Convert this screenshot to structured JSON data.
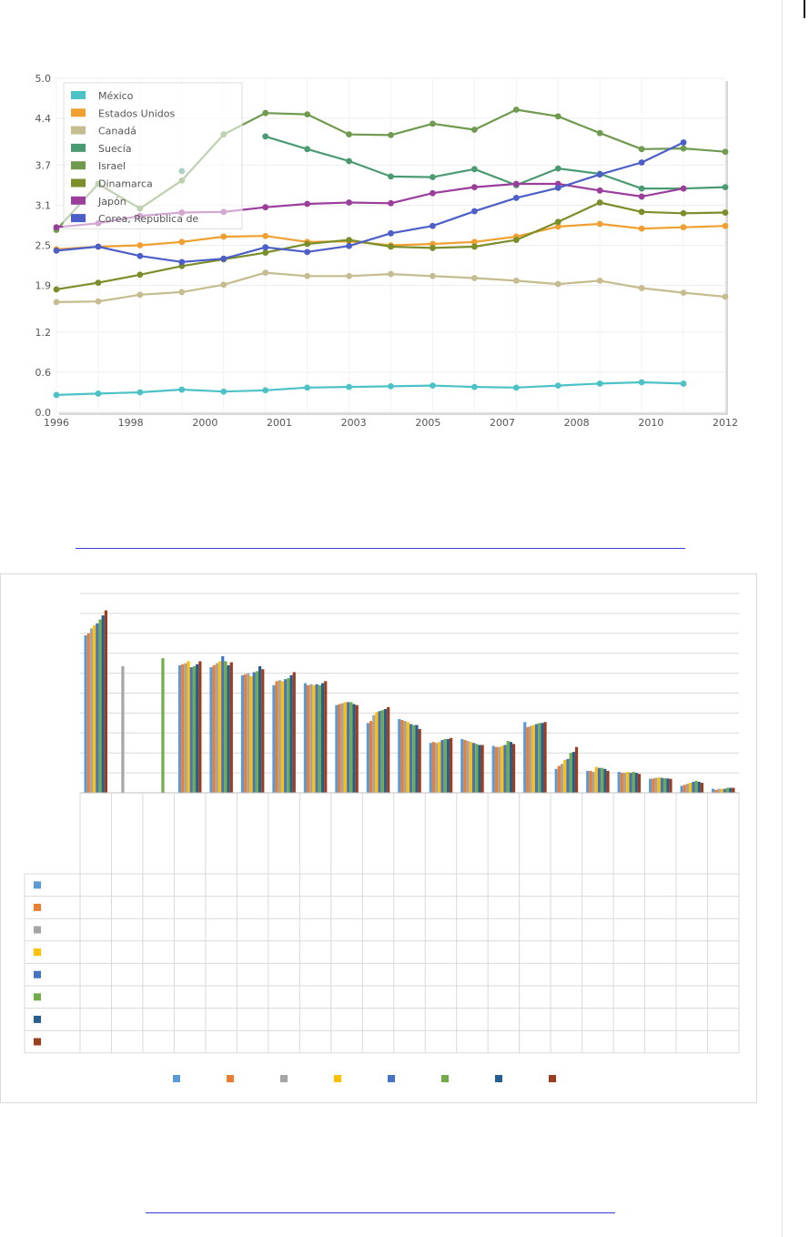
{
  "chart_data": [
    {
      "type": "line",
      "title": "",
      "xlabel": "",
      "ylabel": "",
      "x_tick_labels": [
        "1996",
        "1998",
        "2000",
        "2001",
        "2003",
        "2005",
        "2007",
        "2008",
        "2010",
        "2012"
      ],
      "y_tick_labels": [
        "0.0",
        "0.6",
        "1.2",
        "1.9",
        "2.5",
        "3.1",
        "3.7",
        "4.4",
        "5.0"
      ],
      "ylim": [
        0,
        5.0
      ],
      "grid": true,
      "legend_position": "top-left",
      "x": [
        1996,
        1997,
        1998,
        1999,
        2000,
        2001,
        2002,
        2003,
        2004,
        2005,
        2006,
        2007,
        2008,
        2009,
        2010,
        2011,
        2012
      ],
      "series": [
        {
          "name": "México",
          "color": "#4dc2c6",
          "values": [
            0.26,
            0.28,
            0.3,
            0.34,
            0.31,
            0.33,
            0.37,
            0.38,
            0.39,
            0.4,
            0.38,
            0.37,
            0.4,
            0.43,
            0.45,
            0.43,
            null
          ]
        },
        {
          "name": "Estados Unidos",
          "color": "#f0a030",
          "values": [
            2.44,
            2.48,
            2.5,
            2.55,
            2.63,
            2.64,
            2.55,
            2.56,
            2.5,
            2.52,
            2.55,
            2.63,
            2.78,
            2.82,
            2.75,
            2.77,
            2.79
          ]
        },
        {
          "name": "Canadá",
          "color": "#c5bc8f",
          "values": [
            1.65,
            1.66,
            1.76,
            1.8,
            1.91,
            2.09,
            2.04,
            2.04,
            2.07,
            2.04,
            2.01,
            1.97,
            1.92,
            1.97,
            1.86,
            1.79,
            1.73
          ]
        },
        {
          "name": "Suecía",
          "color": "#4a9a72",
          "values": [
            null,
            null,
            null,
            3.61,
            null,
            4.13,
            3.94,
            3.76,
            3.53,
            3.52,
            3.64,
            3.4,
            3.65,
            3.57,
            3.35,
            3.35,
            3.37
          ]
        },
        {
          "name": "Israel",
          "color": "#6f9a50",
          "values": [
            2.73,
            3.42,
            3.05,
            3.47,
            4.16,
            4.48,
            4.46,
            4.16,
            4.15,
            4.32,
            4.23,
            4.53,
            4.43,
            4.18,
            3.94,
            3.95,
            3.9
          ]
        },
        {
          "name": "Dinamarca",
          "color": "#7a8e2a",
          "values": [
            1.84,
            1.94,
            2.06,
            2.19,
            2.29,
            2.39,
            2.52,
            2.58,
            2.48,
            2.46,
            2.48,
            2.58,
            2.85,
            3.14,
            3.0,
            2.98,
            2.99
          ]
        },
        {
          "name": "Japón",
          "color": "#9b3d9a",
          "values": [
            2.77,
            2.83,
            2.94,
            2.99,
            3.0,
            3.07,
            3.12,
            3.14,
            3.13,
            3.28,
            3.37,
            3.42,
            3.42,
            3.32,
            3.23,
            3.35,
            null
          ]
        },
        {
          "name": "Corea, República de",
          "color": "#4c5fc8",
          "values": [
            2.42,
            2.48,
            2.34,
            2.25,
            2.3,
            2.47,
            2.4,
            2.49,
            2.68,
            2.79,
            3.01,
            3.21,
            3.36,
            3.56,
            3.74,
            4.04,
            null
          ]
        }
      ]
    },
    {
      "type": "bar",
      "title": "",
      "categories": [
        "",
        "",
        "",
        "",
        "",
        "",
        "",
        "",
        "",
        "",
        "",
        "",
        "",
        "",
        "",
        "",
        "",
        "",
        "",
        "",
        ""
      ],
      "ylim": [
        0,
        10
      ],
      "grid": true,
      "legend_position": "bottom",
      "series": [
        {
          "name": "",
          "color": "#5b9bd5",
          "values": [
            7.9,
            null,
            null,
            6.4,
            6.3,
            5.9,
            5.4,
            5.5,
            4.4,
            3.5,
            3.7,
            2.5,
            2.7,
            2.35,
            3.55,
            1.2,
            1.1,
            1.05,
            0.7,
            0.35,
            0.2
          ]
        },
        {
          "name": "",
          "color": "#ed7d31",
          "values": [
            8.0,
            null,
            null,
            6.45,
            6.4,
            5.95,
            5.6,
            5.4,
            4.45,
            3.6,
            3.65,
            2.55,
            2.65,
            2.3,
            3.3,
            1.35,
            1.1,
            1.0,
            0.72,
            0.4,
            0.15
          ]
        },
        {
          "name": "",
          "color": "#a5a5a5",
          "values": [
            8.25,
            6.35,
            null,
            6.5,
            6.5,
            6.0,
            5.65,
            5.45,
            4.5,
            3.9,
            3.6,
            2.5,
            2.6,
            2.3,
            3.35,
            1.45,
            1.05,
            1.0,
            0.75,
            0.45,
            0.2
          ]
        },
        {
          "name": "",
          "color": "#ffc000",
          "values": [
            8.4,
            null,
            null,
            6.6,
            6.6,
            5.85,
            5.6,
            5.4,
            4.55,
            4.05,
            3.55,
            2.55,
            2.55,
            2.35,
            3.4,
            1.65,
            1.3,
            1.05,
            0.77,
            0.5,
            0.2
          ]
        },
        {
          "name": "",
          "color": "#4472c4",
          "values": [
            8.5,
            null,
            null,
            6.3,
            6.85,
            6.05,
            5.7,
            5.45,
            4.55,
            4.1,
            3.45,
            2.65,
            2.5,
            2.4,
            3.45,
            1.7,
            1.25,
            1.0,
            0.75,
            0.55,
            0.2
          ]
        },
        {
          "name": "",
          "color": "#70ad47",
          "values": [
            8.7,
            null,
            6.75,
            6.35,
            6.6,
            6.1,
            5.75,
            5.4,
            4.55,
            4.15,
            3.4,
            2.7,
            2.45,
            2.6,
            3.5,
            2.0,
            1.25,
            1.05,
            0.73,
            0.6,
            0.25
          ]
        },
        {
          "name": "",
          "color": "#255e91",
          "values": [
            8.9,
            null,
            null,
            6.45,
            6.4,
            6.35,
            5.9,
            5.5,
            4.45,
            4.2,
            3.4,
            2.7,
            2.4,
            2.55,
            3.5,
            2.05,
            1.2,
            1.0,
            0.72,
            0.55,
            0.25
          ]
        },
        {
          "name": "",
          "color": "#9e3c1f",
          "values": [
            9.15,
            null,
            null,
            6.6,
            6.55,
            6.2,
            6.05,
            5.6,
            4.4,
            4.3,
            3.2,
            2.75,
            2.4,
            2.45,
            3.55,
            2.3,
            1.1,
            0.95,
            0.7,
            0.5,
            0.25
          ]
        }
      ]
    }
  ]
}
